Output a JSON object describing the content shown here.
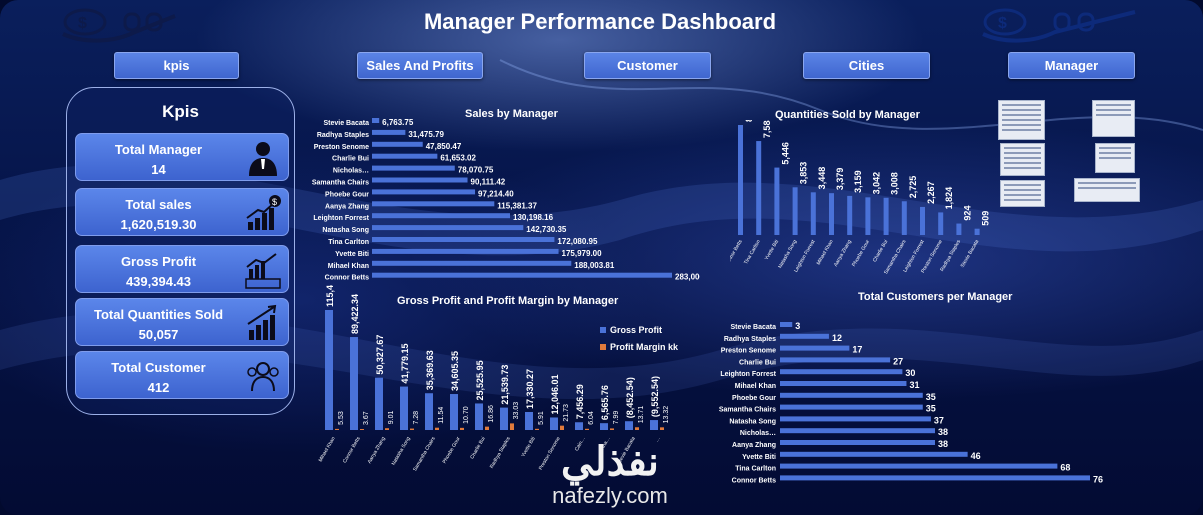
{
  "header": {
    "title": "Manager Performance Dashboard"
  },
  "nav": [
    {
      "label": "kpis"
    },
    {
      "label": "Sales And Profits"
    },
    {
      "label": "Customer"
    },
    {
      "label": "Cities"
    },
    {
      "label": "Manager"
    }
  ],
  "kpis": {
    "heading": "Kpis",
    "cards": [
      {
        "label": "Total Manager",
        "value": "14",
        "icon": "manager-icon"
      },
      {
        "label": "Total sales",
        "value": "1,620,519.30",
        "icon": "money-growth-icon"
      },
      {
        "label": "Gross Profit",
        "value": "439,394.43",
        "icon": "profit-chart-icon"
      },
      {
        "label": "Total Quantities Sold",
        "value": "50,057",
        "icon": "quantity-growth-icon"
      },
      {
        "label": "Total Customer",
        "value": "412",
        "icon": "customers-icon"
      }
    ]
  },
  "watermark": {
    "text_ar": "نفذلي",
    "text_en": "nafezly.com"
  },
  "chart_data": [
    {
      "type": "bar",
      "orientation": "horizontal",
      "title": "Sales by Manager",
      "categories": [
        "Stevie Bacata",
        "Radhya Staples",
        "Preston Senome",
        "Charlie Bui",
        "Nicholas…",
        "Samantha Chairs",
        "Phoebe Gour",
        "Aanya Zhang",
        "Leighton Forrest",
        "Natasha Song",
        "Tina Carlton",
        "Yvette Biti",
        "Mihael Khan",
        "Connor Betts"
      ],
      "values": [
        6763.75,
        31475.79,
        47850.47,
        61653.02,
        78070.75,
        90111.42,
        97214.4,
        115381.37,
        130198.16,
        142730.35,
        172080.95,
        175979.0,
        188003.81,
        283006.06
      ],
      "labels": [
        "6,763.75",
        "31,475.79",
        "47,850.47",
        "61,653.02",
        "78,070.75",
        "90,111.42",
        "97,214.40",
        "115,381.37",
        "130,198.16",
        "142,730.35",
        "172,080.95",
        "175,979.00",
        "188,003.81",
        "283,006.06"
      ],
      "color": "#4a72d8"
    },
    {
      "type": "bar",
      "orientation": "vertical",
      "title": "Quantities Sold by Manager",
      "categories": [
        "Connor Betts",
        "Tina Carlton",
        "Yvette Biti",
        "Natasha Song",
        "Leighton Forrest",
        "Mihael Khan",
        "Aanya Zhang",
        "Phoebe Gour",
        "Charlie Bui",
        "Samantha Chairs",
        "Leighton Forrest",
        "Preston Senome",
        "Radhya Staples",
        "Stevie Bacata"
      ],
      "values": [
        8885,
        7588,
        5446,
        3853,
        3448,
        3379,
        3159,
        3042,
        3008,
        2725,
        2267,
        1824,
        924,
        509
      ],
      "labels": [
        "8,885",
        "7,588",
        "5,446",
        "3,853",
        "3,448",
        "3,379",
        "3,159",
        "3,042",
        "3,008",
        "2,725",
        "2,267",
        "1,824",
        "924",
        "509"
      ],
      "color": "#4a72d8"
    },
    {
      "type": "bar",
      "orientation": "vertical",
      "title": "Gross Profit and Profit Margin by Manager",
      "categories": [
        "Mihael Khan",
        "Connor Betts",
        "Aanya Zhang",
        "Natasha Song",
        "Samantha Chairs",
        "Phoebe Gour",
        "Charlie Bui",
        "Radhya Staples",
        "Yvette Biti",
        "Preston Senome",
        "Cain…",
        "Tina…",
        "Stevie Bacata",
        "…"
      ],
      "series": [
        {
          "name": "Gross Profit",
          "color": "#4a72d8",
          "values": [
            115431.36,
            89422.34,
            50327.67,
            41779.15,
            35369.63,
            34605.35,
            25525.95,
            21539.73,
            17330.27,
            12046.01,
            7456.29,
            6565.76,
            -8452.54,
            -9552.54
          ],
          "labels": [
            "115,431.36",
            "89,422.34",
            "50,327.67",
            "41,779.15",
            "35,369.63",
            "34,605.35",
            "25,525.95",
            "21,539.73",
            "17,330.27",
            "12,046.01",
            "7,456.29",
            "6,565.76",
            "(8,452.54)",
            "(9,552.54)"
          ]
        },
        {
          "name": "Profit Margin kk",
          "color": "#e07a3c",
          "values": [
            5.53,
            3.67,
            9.01,
            7.28,
            11.54,
            10.7,
            16.86,
            33.03,
            5.91,
            21.73,
            6.04,
            7.99,
            13.71,
            13.32
          ],
          "labels": [
            "5.53",
            "3.67",
            "9.01",
            "7.28",
            "11.54",
            "10.70",
            "16.86",
            "33.03",
            "5.91",
            "21.73",
            "6.04",
            "7.99",
            "13.71",
            "13.32"
          ]
        }
      ],
      "legend": "top-right"
    },
    {
      "type": "bar",
      "orientation": "horizontal",
      "title": "Total Customers per Manager",
      "categories": [
        "Stevie Bacata",
        "Radhya Staples",
        "Preston Senome",
        "Charlie Bui",
        "Leighton Forrest",
        "Mihael Khan",
        "Phoebe Gour",
        "Samantha Chairs",
        "Natasha Song",
        "Nicholas…",
        "Aanya Zhang",
        "Yvette Biti",
        "Tina Carlton",
        "Connor Betts"
      ],
      "values": [
        3,
        12,
        17,
        27,
        30,
        31,
        35,
        35,
        37,
        38,
        38,
        46,
        68,
        76
      ],
      "labels": [
        "3",
        "12",
        "17",
        "27",
        "30",
        "31",
        "35",
        "35",
        "37",
        "38",
        "38",
        "46",
        "68",
        "76"
      ],
      "color": "#4a72d8"
    }
  ]
}
